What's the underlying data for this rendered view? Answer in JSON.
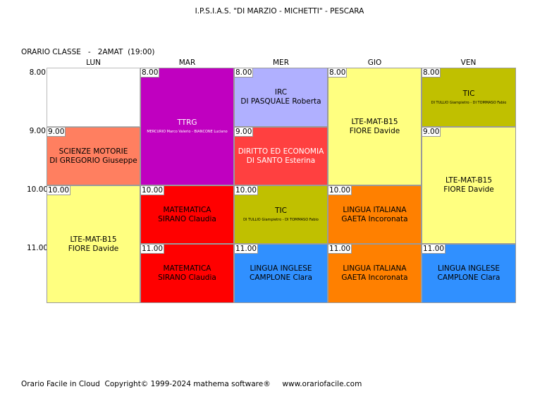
{
  "header": {
    "school": "I.P.S.I.A.S. \"DI MARZIO - MICHETTI\" - PESCARA",
    "class_label": "ORARIO CLASSE   -   2AMAT  (19:00)"
  },
  "days": [
    "LUN",
    "MAR",
    "MER",
    "GIO",
    "VEN"
  ],
  "hours": [
    "8.00",
    "9.00",
    "10.00",
    "11.00"
  ],
  "lessons": {
    "lun_1": {
      "start": "9.00",
      "subject": "SCIENZE MOTORIE",
      "teacher": "DI GREGORIO Giuseppe",
      "color": "#ff7f60"
    },
    "lun_2": {
      "start": "10.00",
      "subject": "LTE-MAT-B15",
      "teacher": "FIORE Davide",
      "color": "#ffff80"
    },
    "mar_0": {
      "start": "8.00",
      "subject": "TTRG",
      "teacher": "MERCURIO Marco Valerio - BIANCONE Luciano",
      "color": "#c000c0"
    },
    "mar_1": {
      "start": "10.00",
      "subject": "MATEMATICA",
      "teacher": "SIRANO Claudia",
      "color": "#ff0000"
    },
    "mar_2": {
      "start": "11.00",
      "subject": "MATEMATICA",
      "teacher": "SIRANO Claudia",
      "color": "#ff0000"
    },
    "mer_0": {
      "start": "8.00",
      "subject": "IRC",
      "teacher": "DI PASQUALE Roberta",
      "color": "#b0b0ff"
    },
    "mer_1": {
      "start": "9.00",
      "subject": "DIRITTO ED ECONOMIA",
      "teacher": "DI SANTO Esterina",
      "color": "#ff4040"
    },
    "mer_2": {
      "start": "10.00",
      "subject": "TIC",
      "teacher": "DI TULLIO Giampietro - DI TOMMASO Fabio",
      "color": "#c0c000"
    },
    "mer_3": {
      "start": "11.00",
      "subject": "LINGUA INGLESE",
      "teacher": "CAMPLONE Clara",
      "color": "#3090ff"
    },
    "gio_0": {
      "start": "8.00",
      "subject": "LTE-MAT-B15",
      "teacher": "FIORE Davide",
      "color": "#ffff80"
    },
    "gio_1": {
      "start": "10.00",
      "subject": "LINGUA ITALIANA",
      "teacher": "GAETA Incoronata",
      "color": "#ff8000"
    },
    "gio_2": {
      "start": "11.00",
      "subject": "LINGUA ITALIANA",
      "teacher": "GAETA Incoronata",
      "color": "#ff8000"
    },
    "ven_0": {
      "start": "8.00",
      "subject": "TIC",
      "teacher": "DI TULLIO Giampietro - DI TOMMASO Fabio",
      "color": "#c0c000"
    },
    "ven_1": {
      "start": "9.00",
      "subject": "LTE-MAT-B15",
      "teacher": "FIORE Davide",
      "color": "#ffff80"
    },
    "ven_2": {
      "start": "11.00",
      "subject": "LINGUA INGLESE",
      "teacher": "CAMPLONE Clara",
      "color": "#3090ff"
    }
  },
  "footer": "Orario Facile in Cloud  Copyright© 1999-2024 mathema software®     www.orariofacile.com"
}
